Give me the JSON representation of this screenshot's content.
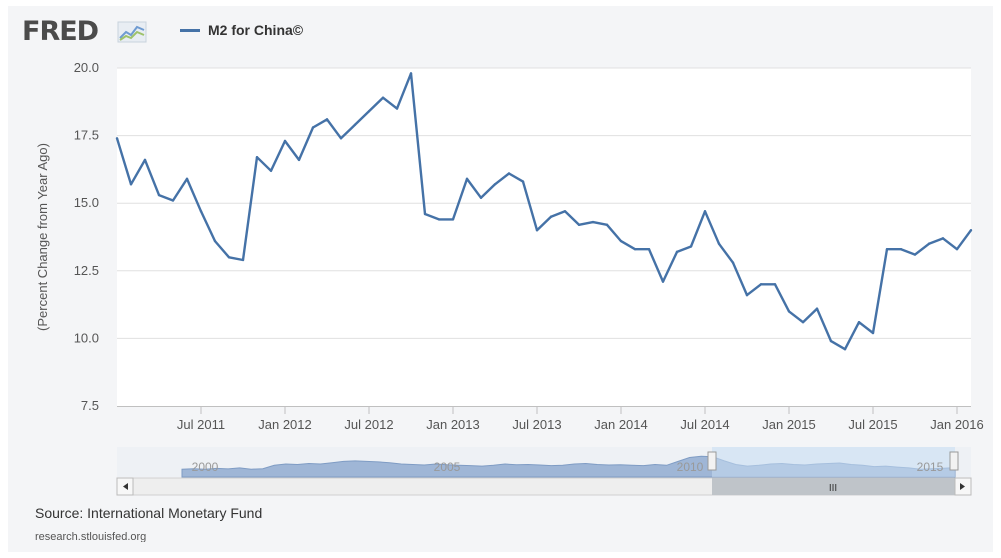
{
  "header": {
    "logo": "FRED",
    "series_name": "M2 for China©"
  },
  "colors": {
    "line": "#4572a7",
    "grid": "#e0e0e0",
    "navigator_fill": "#9fb6d6",
    "navigator_selection": "#c7dcf2"
  },
  "footer": {
    "source": "Source: International Monetary Fund",
    "url": "research.stlouisfed.org"
  },
  "navigator": {
    "labels": [
      "2000",
      "2005",
      "2010",
      "2015"
    ],
    "scroll_left_icon": "chevron-left-icon",
    "scroll_right_icon": "chevron-right-icon",
    "grip": "III"
  },
  "chart_data": {
    "type": "line",
    "title": "",
    "xlabel": "",
    "ylabel": "(Percent Change from Year Ago)",
    "ylim": [
      7.5,
      20.0
    ],
    "yticks": [
      "7.5",
      "10.0",
      "12.5",
      "15.0",
      "17.5",
      "20.0"
    ],
    "xlim": [
      "2011-01",
      "2016-02"
    ],
    "xticks": [
      {
        "label": "Jul 2011",
        "date": "2011-07"
      },
      {
        "label": "Jan 2012",
        "date": "2012-01"
      },
      {
        "label": "Jul 2012",
        "date": "2012-07"
      },
      {
        "label": "Jan 2013",
        "date": "2013-01"
      },
      {
        "label": "Jul 2013",
        "date": "2013-07"
      },
      {
        "label": "Jan 2014",
        "date": "2014-01"
      },
      {
        "label": "Jul 2014",
        "date": "2014-07"
      },
      {
        "label": "Jan 2015",
        "date": "2015-01"
      },
      {
        "label": "Jul 2015",
        "date": "2015-07"
      },
      {
        "label": "Jan 2016",
        "date": "2016-01"
      }
    ],
    "grid": true,
    "legend": "top-left",
    "series": [
      {
        "name": "M2 for China©",
        "dates": [
          "2011-01",
          "2011-02",
          "2011-03",
          "2011-04",
          "2011-05",
          "2011-06",
          "2011-07",
          "2011-08",
          "2011-09",
          "2011-10",
          "2011-11",
          "2011-12",
          "2012-01",
          "2012-02",
          "2012-03",
          "2012-04",
          "2012-05",
          "2012-06",
          "2012-07",
          "2012-08",
          "2012-09",
          "2012-10",
          "2012-11",
          "2012-12",
          "2013-01",
          "2013-02",
          "2013-03",
          "2013-04",
          "2013-05",
          "2013-06",
          "2013-07",
          "2013-08",
          "2013-09",
          "2013-10",
          "2013-11",
          "2013-12",
          "2014-01",
          "2014-02",
          "2014-03",
          "2014-04",
          "2014-05",
          "2014-06",
          "2014-07",
          "2014-08",
          "2014-09",
          "2014-10",
          "2014-11",
          "2014-12",
          "2015-01",
          "2015-02",
          "2015-03",
          "2015-04",
          "2015-05",
          "2015-06",
          "2015-07",
          "2015-08",
          "2015-09",
          "2015-10",
          "2015-11",
          "2015-12",
          "2016-01",
          "2016-02"
        ],
        "values": [
          17.4,
          15.7,
          16.6,
          15.3,
          15.1,
          15.9,
          14.7,
          13.6,
          13.0,
          12.9,
          16.7,
          16.2,
          17.3,
          16.6,
          17.8,
          18.1,
          17.4,
          17.9,
          18.4,
          18.9,
          18.5,
          19.8,
          14.6,
          14.4,
          14.4,
          15.9,
          15.2,
          15.7,
          16.1,
          15.8,
          14.0,
          14.5,
          14.7,
          14.2,
          14.3,
          14.2,
          13.6,
          13.3,
          13.3,
          12.1,
          13.2,
          13.4,
          14.7,
          13.5,
          12.8,
          11.6,
          12.0,
          12.0,
          11.0,
          10.6,
          11.1,
          9.9,
          9.6,
          10.6,
          10.2,
          13.3,
          13.3,
          13.1,
          13.5,
          13.7,
          13.3,
          14.0
        ]
      }
    ]
  }
}
